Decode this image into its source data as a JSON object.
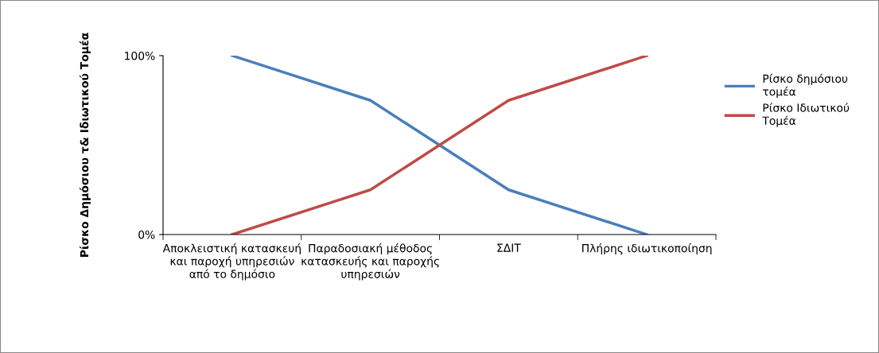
{
  "chart_data": {
    "type": "line",
    "ylabel": "Ρίσκο Δημόσιου τ& Ιδιωτικού Τομέα",
    "categories": [
      "Αποκλειστική κατασκευή\nκαι παροχή υπηρεσιών\nαπό το δημόσιο",
      "Παραδοσιακή μέθοδος\nκατασκευής και παροχής\nυπηρεσιών",
      "ΣΔΙΤ",
      "Πλήρης ιδιωτικοποίηση"
    ],
    "series": [
      {
        "name": "Ρίσκο δημόσιου\nτομέα",
        "color": "#4a7ebb",
        "values": [
          100,
          75,
          25,
          0
        ]
      },
      {
        "name": "Ρίσκο Ιδιωτικού\nΤομέα",
        "color": "#be4b48",
        "values": [
          0,
          25,
          75,
          100
        ]
      }
    ],
    "ylim": [
      0,
      100
    ],
    "yticks": [
      {
        "value": 0,
        "label": "0%"
      },
      {
        "value": 100,
        "label": "100%"
      }
    ],
    "grid": false,
    "legend": "right",
    "marker": "none",
    "line_style": "solid"
  }
}
